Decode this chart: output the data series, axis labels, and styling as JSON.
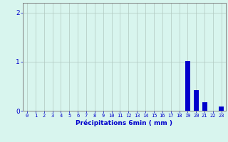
{
  "x_labels": [
    "0",
    "1",
    "2",
    "3",
    "4",
    "5",
    "6",
    "7",
    "8",
    "9",
    "10",
    "11",
    "12",
    "13",
    "14",
    "15",
    "16",
    "17",
    "18",
    "19",
    "20",
    "21",
    "22",
    "23"
  ],
  "values": [
    0,
    0,
    0,
    0,
    0,
    0,
    0,
    0,
    0,
    0,
    0,
    0,
    0,
    0,
    0,
    0,
    0,
    0,
    0,
    1.02,
    0.42,
    0.18,
    0,
    0.08
  ],
  "bar_color": "#0000cc",
  "background_color": "#d8f5ee",
  "grid_color": "#b0c8c0",
  "xlabel": "Précipitations 6min ( mm )",
  "xlabel_color": "#0000cc",
  "tick_color": "#0000cc",
  "axis_color": "#808080",
  "ylim": [
    0,
    2.2
  ],
  "yticks": [
    0,
    1,
    2
  ],
  "figsize": [
    3.2,
    2.0
  ],
  "dpi": 100
}
